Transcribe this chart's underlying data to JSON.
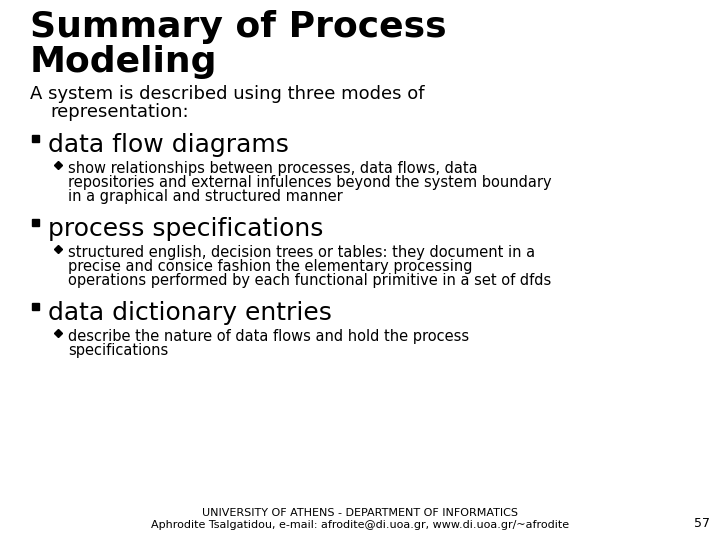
{
  "title_line1": "Summary of Process",
  "title_line2": "Modeling",
  "subtitle_line1": "A system is described using three modes of",
  "subtitle_line2": "    representation:",
  "bullet1": "data flow diagrams",
  "bullet1_sub1": "show relationships between processes, data flows, data",
  "bullet1_sub2": "repositories and external infulences beyond the system boundary",
  "bullet1_sub3": "in a graphical and structured manner",
  "bullet2": "process specifications",
  "bullet2_sub1": "structured english, decision trees or tables: they document in a",
  "bullet2_sub2": "precise and consice fashion the elementary processing",
  "bullet2_sub3": "operations performed by each functional primitive in a set of dfds",
  "bullet3": "data dictionary entries",
  "bullet3_sub1": "describe the nature of data flows and hold the process",
  "bullet3_sub2": "specifications",
  "footer1": "UNIVERSITY OF ATHENS - DEPARTMENT OF INFORMATICS",
  "footer2": "Aphrodite Tsalgatidou, e-mail: afrodite@di.uoa.gr, www.di.uoa.gr/~afrodite",
  "page_number": "57",
  "bg_color": "#ffffff",
  "text_color": "#000000",
  "title_fontsize": 26,
  "subtitle_fontsize": 13,
  "bullet_fontsize": 18,
  "subbullet_fontsize": 10.5,
  "footer_fontsize": 8
}
